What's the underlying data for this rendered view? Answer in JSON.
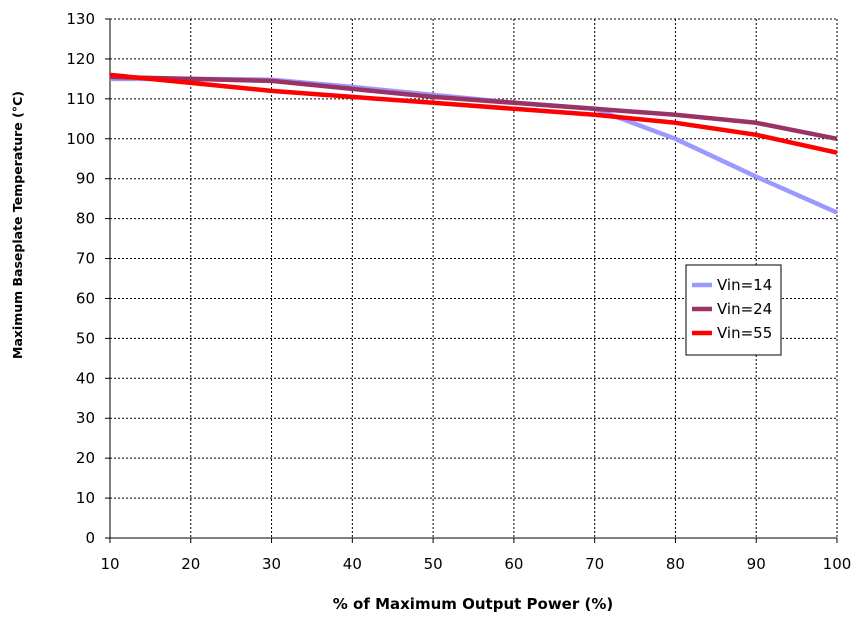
{
  "chart_data": {
    "type": "line",
    "xlabel": "% of Maximum Output Power (%)",
    "ylabel": "Maximum Baseplate Temperature (°C)",
    "xlim": [
      10,
      100
    ],
    "ylim": [
      0,
      130
    ],
    "x_ticks": [
      "10",
      "20",
      "30",
      "40",
      "50",
      "60",
      "70",
      "80",
      "90",
      "100"
    ],
    "y_ticks": [
      "0",
      "10",
      "20",
      "30",
      "40",
      "50",
      "60",
      "70",
      "80",
      "90",
      "100",
      "110",
      "120",
      "130"
    ],
    "grid": true,
    "legend_position": "middle-right",
    "x": [
      10,
      20,
      30,
      40,
      50,
      60,
      70,
      80,
      90,
      100
    ],
    "series": [
      {
        "name": "Vin=14",
        "color": "#9999ff",
        "values": [
          115,
          115,
          114.8,
          113,
          111,
          109,
          107.5,
          100,
          90.5,
          81.5
        ]
      },
      {
        "name": "Vin=24",
        "color": "#993366",
        "values": [
          115.5,
          115,
          114.5,
          112.5,
          110.5,
          109,
          107.5,
          106,
          104,
          100
        ]
      },
      {
        "name": "Vin=55",
        "color": "#ff0000",
        "values": [
          116,
          114,
          112,
          110.5,
          109,
          107.5,
          106,
          104,
          101,
          96.5
        ]
      }
    ]
  }
}
